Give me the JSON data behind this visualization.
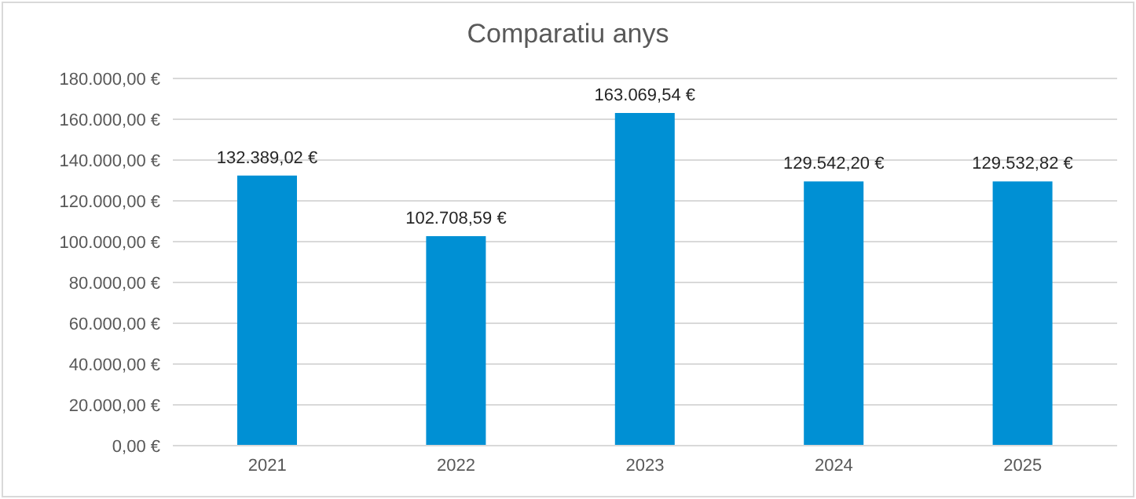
{
  "chart_data": {
    "type": "bar",
    "title": "Comparatiu anys",
    "categories": [
      "2021",
      "2022",
      "2023",
      "2024",
      "2025"
    ],
    "values": [
      132389.02,
      102708.59,
      163069.54,
      129542.2,
      129532.82
    ],
    "value_labels": [
      "132.389,02 €",
      "102.708,59 €",
      "163.069,54 €",
      "129.542,20 €",
      "129.532,82 €"
    ],
    "color": "#0090d4",
    "ylim": [
      0,
      180000
    ],
    "yticks": [
      {
        "value": 0,
        "label": "0,00 €"
      },
      {
        "value": 20000,
        "label": "20.000,00 €"
      },
      {
        "value": 40000,
        "label": "40.000,00 €"
      },
      {
        "value": 60000,
        "label": "60.000,00 €"
      },
      {
        "value": 80000,
        "label": "80.000,00 €"
      },
      {
        "value": 100000,
        "label": "100.000,00 €"
      },
      {
        "value": 120000,
        "label": "120.000,00 €"
      },
      {
        "value": 140000,
        "label": "140.000,00 €"
      },
      {
        "value": 160000,
        "label": "160.000,00 €"
      },
      {
        "value": 180000,
        "label": "180.000,00 €"
      }
    ],
    "grid": "y"
  }
}
